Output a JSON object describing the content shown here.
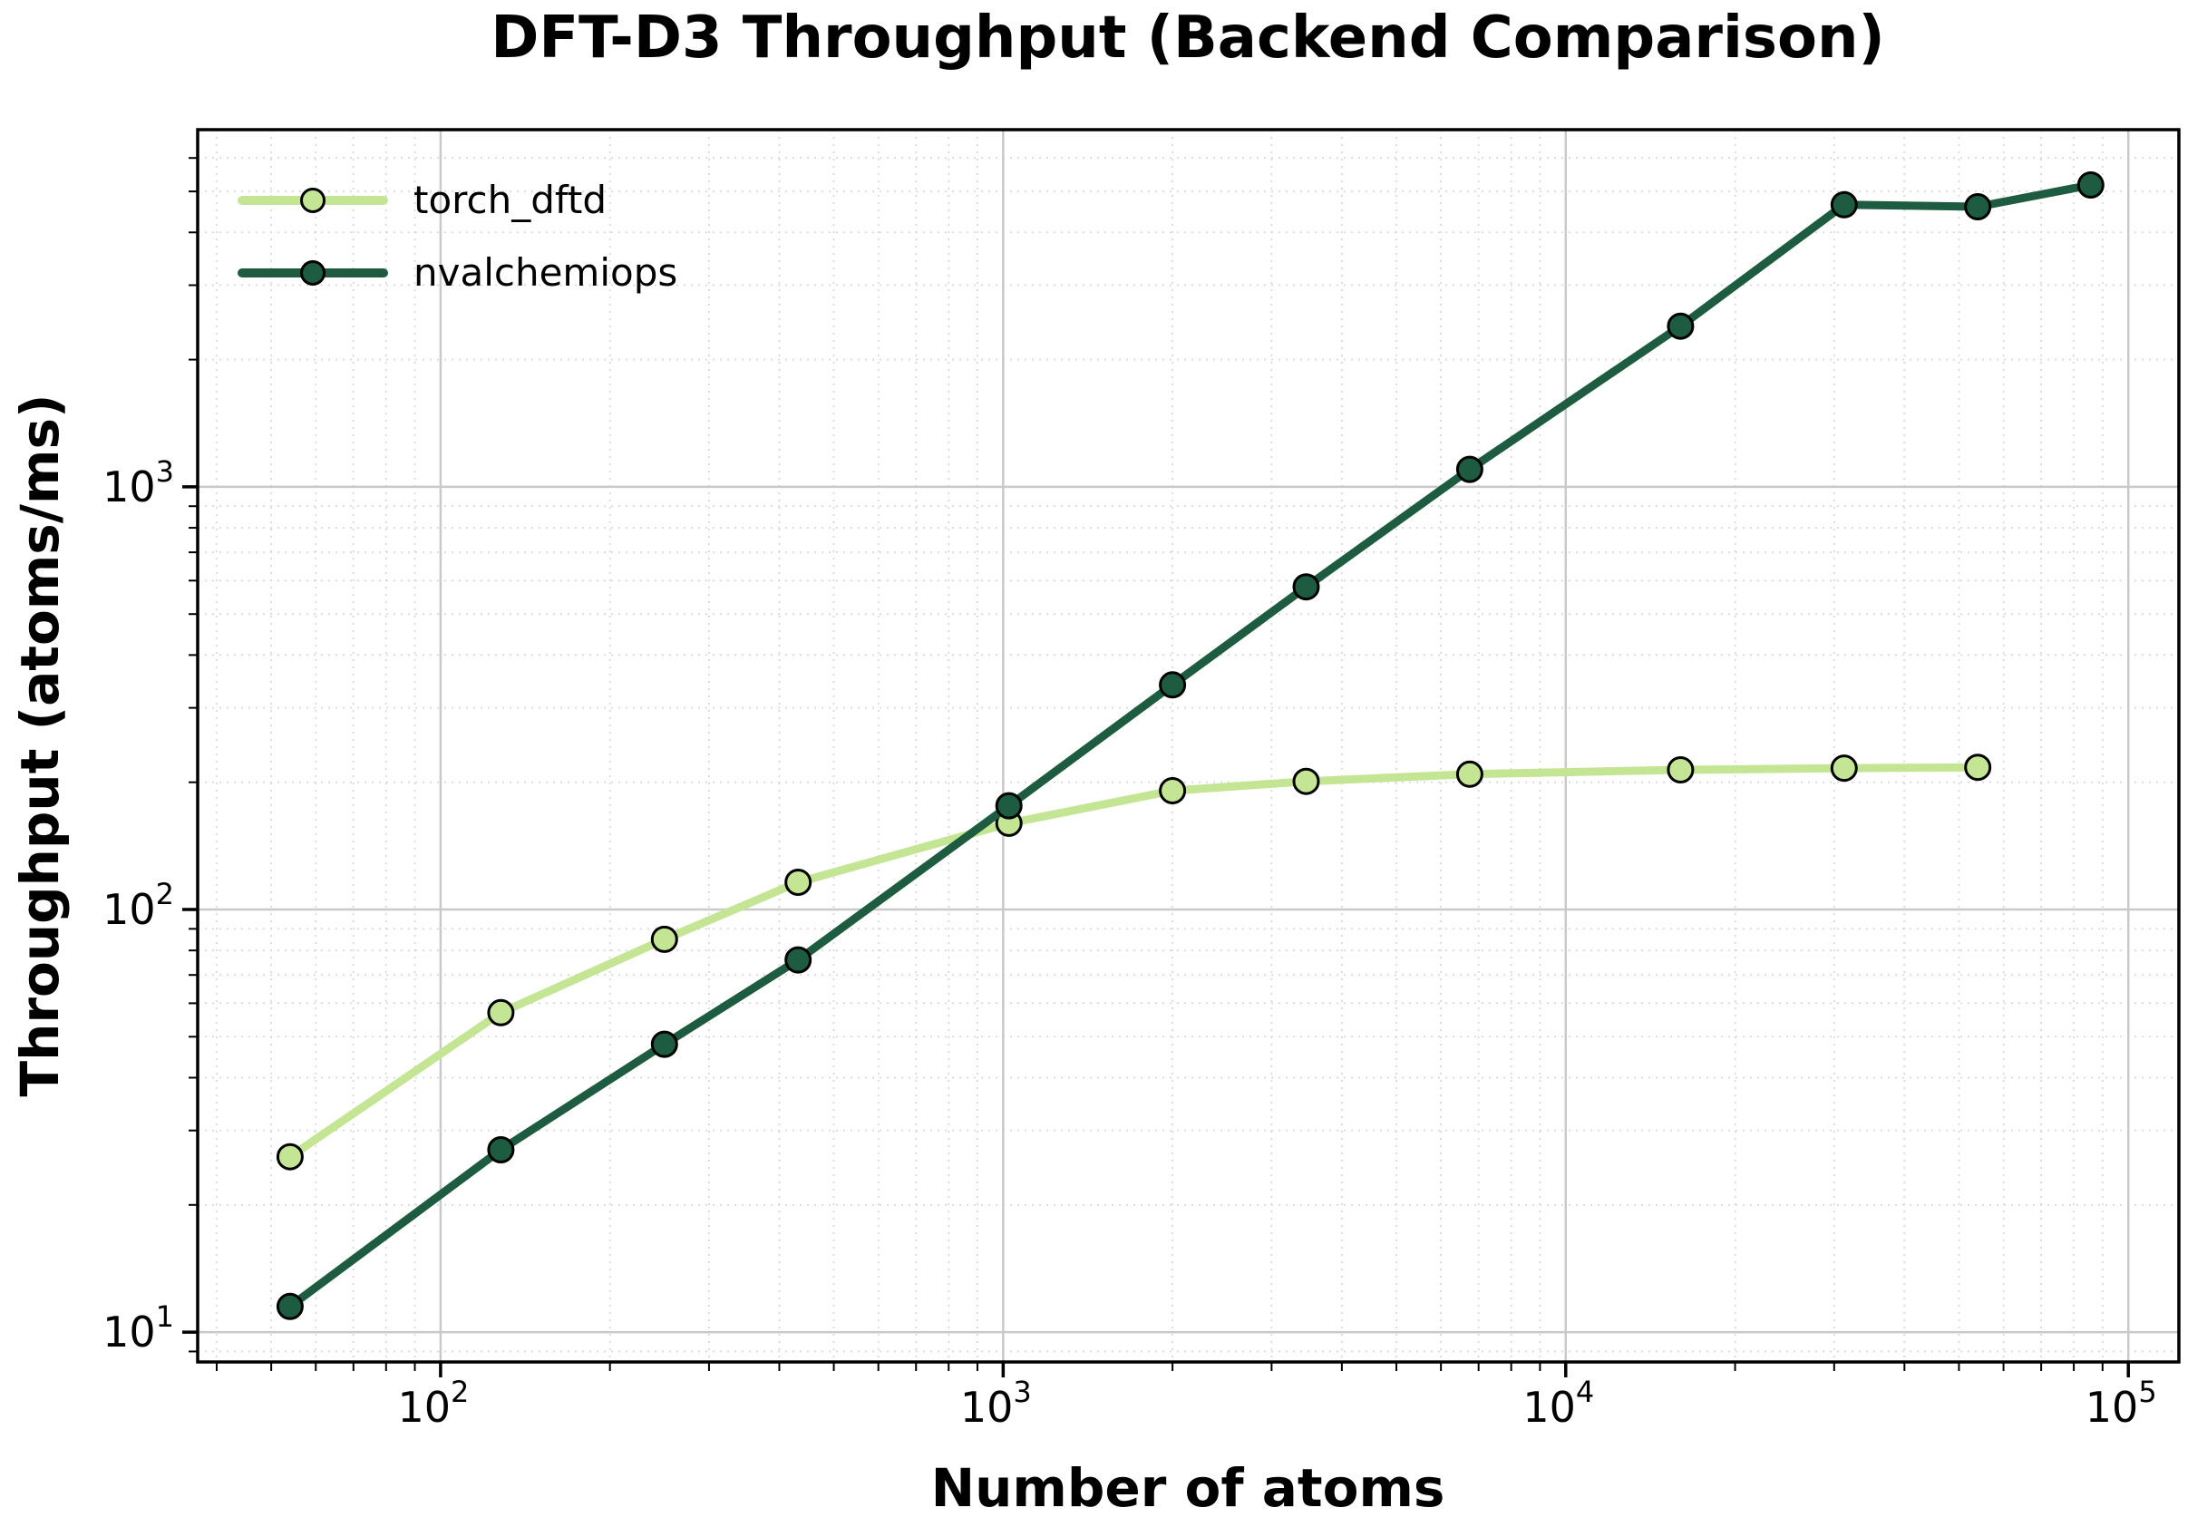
{
  "title": "DFT-D3 Throughput (Backend Comparison)",
  "x_axis": {
    "label": "Number of atoms",
    "tick_exponents": [
      2,
      3,
      4,
      5
    ]
  },
  "y_axis": {
    "label": "Throughput (atoms/ms)",
    "tick_exponents": [
      1,
      2,
      3
    ]
  },
  "legend": {
    "position": "upper left",
    "items": [
      {
        "label": "torch_dftd",
        "color": "#c4e694"
      },
      {
        "label": "nvalchemiops",
        "color": "#1d5c40"
      }
    ]
  },
  "chart_data": {
    "type": "line",
    "title": "DFT-D3 Throughput (Backend Comparison)",
    "xlabel": "Number of atoms",
    "ylabel": "Throughput (atoms/ms)",
    "x_scale": "log",
    "y_scale": "log",
    "xlim": [
      37,
      123000
    ],
    "ylim": [
      8.5,
      7000
    ],
    "grid": {
      "major": "solid gray",
      "minor": "dotted light gray"
    },
    "legend_position": "upper left",
    "x": [
      54,
      128,
      250,
      432,
      1024,
      2000,
      3456,
      6750,
      16000,
      31250,
      54000,
      85750
    ],
    "series": [
      {
        "name": "torch_dftd",
        "color": "#c4e694",
        "values": [
          26,
          57,
          85,
          116,
          160,
          191,
          201,
          209,
          214,
          216,
          217,
          null
        ]
      },
      {
        "name": "nvalchemiops",
        "color": "#1d5c40",
        "values": [
          11.5,
          27,
          48,
          76,
          176,
          340,
          580,
          1100,
          2400,
          4650,
          4600,
          5180
        ]
      }
    ]
  },
  "colors": {
    "spine": "#000000",
    "grid_major": "#c9c9c9",
    "grid_minor": "#d9d9d9",
    "marker_edge": "#000000"
  }
}
